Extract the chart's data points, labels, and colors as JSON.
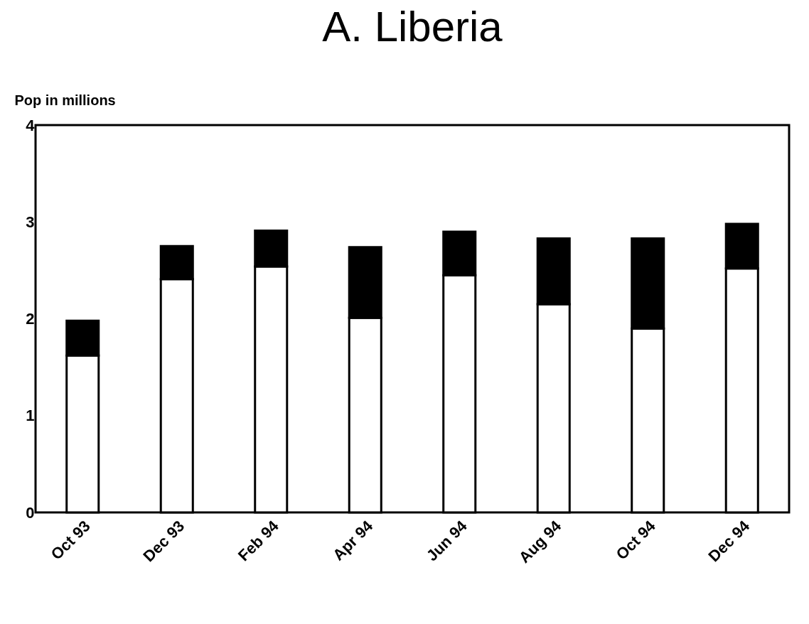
{
  "chart_data": {
    "type": "bar",
    "title": "A. Liberia",
    "ylabel": "Pop in millions",
    "categories": [
      "Oct 93",
      "Dec 93",
      "Feb 94",
      "Apr 94",
      "Jun 94",
      "Aug 94",
      "Oct 94",
      "Dec 94"
    ],
    "stacked": true,
    "series": [
      {
        "color": "#ffffff",
        "values": [
          1.62,
          2.41,
          2.54,
          2.01,
          2.45,
          2.15,
          1.9,
          2.52
        ]
      },
      {
        "color": "#000000",
        "values": [
          0.36,
          0.34,
          0.37,
          0.73,
          0.45,
          0.68,
          0.93,
          0.46
        ]
      }
    ],
    "ylim": [
      0,
      4
    ],
    "yticks": [
      0,
      1,
      2,
      3,
      4
    ]
  }
}
